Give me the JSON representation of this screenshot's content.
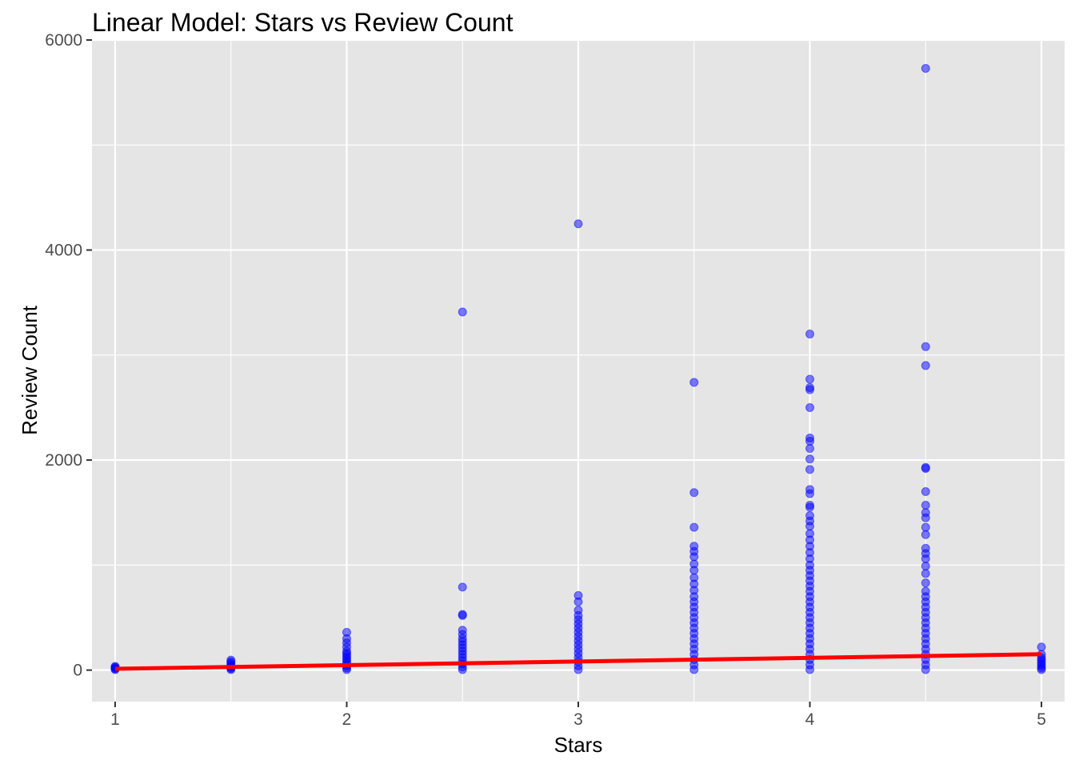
{
  "chart_data": {
    "type": "scatter",
    "title": "Linear Model: Stars vs Review Count",
    "xlabel": "Stars",
    "ylabel": "Review Count",
    "xlim": [
      0.9,
      5.1
    ],
    "ylim": [
      -300,
      6000
    ],
    "x_ticks": [
      1,
      2,
      3,
      4,
      5
    ],
    "x_tick_labels": [
      "1",
      "2",
      "3",
      "4",
      "5"
    ],
    "y_ticks": [
      0,
      2000,
      4000,
      6000
    ],
    "y_tick_labels": [
      "0",
      "2000",
      "4000",
      "6000"
    ],
    "grid": true,
    "legend": "none",
    "colors": {
      "panel": "#e5e5e5",
      "grid": "#ffffff",
      "points": "#0000ff",
      "fit_line": "#ff0000"
    },
    "series": [
      {
        "type": "scatter",
        "points": [
          {
            "x": 1,
            "y": 5
          },
          {
            "x": 1,
            "y": 12
          },
          {
            "x": 1,
            "y": 20
          },
          {
            "x": 1,
            "y": 28
          },
          {
            "x": 1,
            "y": 35
          },
          {
            "x": 1.5,
            "y": 5
          },
          {
            "x": 1.5,
            "y": 15
          },
          {
            "x": 1.5,
            "y": 25
          },
          {
            "x": 1.5,
            "y": 35
          },
          {
            "x": 1.5,
            "y": 50
          },
          {
            "x": 1.5,
            "y": 65
          },
          {
            "x": 1.5,
            "y": 80
          },
          {
            "x": 1.5,
            "y": 95
          },
          {
            "x": 2,
            "y": 5
          },
          {
            "x": 2,
            "y": 20
          },
          {
            "x": 2,
            "y": 40
          },
          {
            "x": 2,
            "y": 60
          },
          {
            "x": 2,
            "y": 80
          },
          {
            "x": 2,
            "y": 100
          },
          {
            "x": 2,
            "y": 120
          },
          {
            "x": 2,
            "y": 140
          },
          {
            "x": 2,
            "y": 160
          },
          {
            "x": 2,
            "y": 180
          },
          {
            "x": 2,
            "y": 220
          },
          {
            "x": 2,
            "y": 260
          },
          {
            "x": 2,
            "y": 300
          },
          {
            "x": 2,
            "y": 360
          },
          {
            "x": 2.5,
            "y": 5
          },
          {
            "x": 2.5,
            "y": 30
          },
          {
            "x": 2.5,
            "y": 60
          },
          {
            "x": 2.5,
            "y": 90
          },
          {
            "x": 2.5,
            "y": 120
          },
          {
            "x": 2.5,
            "y": 150
          },
          {
            "x": 2.5,
            "y": 180
          },
          {
            "x": 2.5,
            "y": 210
          },
          {
            "x": 2.5,
            "y": 240
          },
          {
            "x": 2.5,
            "y": 270
          },
          {
            "x": 2.5,
            "y": 300
          },
          {
            "x": 2.5,
            "y": 340
          },
          {
            "x": 2.5,
            "y": 380
          },
          {
            "x": 2.5,
            "y": 520
          },
          {
            "x": 2.5,
            "y": 530
          },
          {
            "x": 2.5,
            "y": 790
          },
          {
            "x": 2.5,
            "y": 3410
          },
          {
            "x": 3,
            "y": 5
          },
          {
            "x": 3,
            "y": 40
          },
          {
            "x": 3,
            "y": 80
          },
          {
            "x": 3,
            "y": 120
          },
          {
            "x": 3,
            "y": 160
          },
          {
            "x": 3,
            "y": 200
          },
          {
            "x": 3,
            "y": 240
          },
          {
            "x": 3,
            "y": 280
          },
          {
            "x": 3,
            "y": 320
          },
          {
            "x": 3,
            "y": 360
          },
          {
            "x": 3,
            "y": 400
          },
          {
            "x": 3,
            "y": 440
          },
          {
            "x": 3,
            "y": 480
          },
          {
            "x": 3,
            "y": 520
          },
          {
            "x": 3,
            "y": 570
          },
          {
            "x": 3,
            "y": 650
          },
          {
            "x": 3,
            "y": 710
          },
          {
            "x": 3,
            "y": 4250
          },
          {
            "x": 3.5,
            "y": 5
          },
          {
            "x": 3.5,
            "y": 50
          },
          {
            "x": 3.5,
            "y": 100
          },
          {
            "x": 3.5,
            "y": 150
          },
          {
            "x": 3.5,
            "y": 200
          },
          {
            "x": 3.5,
            "y": 250
          },
          {
            "x": 3.5,
            "y": 300
          },
          {
            "x": 3.5,
            "y": 350
          },
          {
            "x": 3.5,
            "y": 400
          },
          {
            "x": 3.5,
            "y": 450
          },
          {
            "x": 3.5,
            "y": 500
          },
          {
            "x": 3.5,
            "y": 550
          },
          {
            "x": 3.5,
            "y": 600
          },
          {
            "x": 3.5,
            "y": 650
          },
          {
            "x": 3.5,
            "y": 700
          },
          {
            "x": 3.5,
            "y": 760
          },
          {
            "x": 3.5,
            "y": 820
          },
          {
            "x": 3.5,
            "y": 880
          },
          {
            "x": 3.5,
            "y": 950
          },
          {
            "x": 3.5,
            "y": 1010
          },
          {
            "x": 3.5,
            "y": 1080
          },
          {
            "x": 3.5,
            "y": 1130
          },
          {
            "x": 3.5,
            "y": 1180
          },
          {
            "x": 3.5,
            "y": 1360
          },
          {
            "x": 3.5,
            "y": 1690
          },
          {
            "x": 3.5,
            "y": 2740
          },
          {
            "x": 4,
            "y": 5
          },
          {
            "x": 4,
            "y": 50
          },
          {
            "x": 4,
            "y": 100
          },
          {
            "x": 4,
            "y": 150
          },
          {
            "x": 4,
            "y": 200
          },
          {
            "x": 4,
            "y": 250
          },
          {
            "x": 4,
            "y": 300
          },
          {
            "x": 4,
            "y": 350
          },
          {
            "x": 4,
            "y": 400
          },
          {
            "x": 4,
            "y": 450
          },
          {
            "x": 4,
            "y": 500
          },
          {
            "x": 4,
            "y": 550
          },
          {
            "x": 4,
            "y": 600
          },
          {
            "x": 4,
            "y": 650
          },
          {
            "x": 4,
            "y": 700
          },
          {
            "x": 4,
            "y": 750
          },
          {
            "x": 4,
            "y": 800
          },
          {
            "x": 4,
            "y": 850
          },
          {
            "x": 4,
            "y": 900
          },
          {
            "x": 4,
            "y": 950
          },
          {
            "x": 4,
            "y": 1000
          },
          {
            "x": 4,
            "y": 1060
          },
          {
            "x": 4,
            "y": 1120
          },
          {
            "x": 4,
            "y": 1180
          },
          {
            "x": 4,
            "y": 1240
          },
          {
            "x": 4,
            "y": 1300
          },
          {
            "x": 4,
            "y": 1370
          },
          {
            "x": 4,
            "y": 1420
          },
          {
            "x": 4,
            "y": 1470
          },
          {
            "x": 4,
            "y": 1550
          },
          {
            "x": 4,
            "y": 1570
          },
          {
            "x": 4,
            "y": 1680
          },
          {
            "x": 4,
            "y": 1720
          },
          {
            "x": 4,
            "y": 1910
          },
          {
            "x": 4,
            "y": 2010
          },
          {
            "x": 4,
            "y": 2110
          },
          {
            "x": 4,
            "y": 2180
          },
          {
            "x": 4,
            "y": 2210
          },
          {
            "x": 4,
            "y": 2500
          },
          {
            "x": 4,
            "y": 2670
          },
          {
            "x": 4,
            "y": 2690
          },
          {
            "x": 4,
            "y": 2770
          },
          {
            "x": 4,
            "y": 3200
          },
          {
            "x": 4.5,
            "y": 5
          },
          {
            "x": 4.5,
            "y": 50
          },
          {
            "x": 4.5,
            "y": 100
          },
          {
            "x": 4.5,
            "y": 150
          },
          {
            "x": 4.5,
            "y": 200
          },
          {
            "x": 4.5,
            "y": 250
          },
          {
            "x": 4.5,
            "y": 300
          },
          {
            "x": 4.5,
            "y": 350
          },
          {
            "x": 4.5,
            "y": 400
          },
          {
            "x": 4.5,
            "y": 450
          },
          {
            "x": 4.5,
            "y": 500
          },
          {
            "x": 4.5,
            "y": 550
          },
          {
            "x": 4.5,
            "y": 600
          },
          {
            "x": 4.5,
            "y": 650
          },
          {
            "x": 4.5,
            "y": 700
          },
          {
            "x": 4.5,
            "y": 750
          },
          {
            "x": 4.5,
            "y": 830
          },
          {
            "x": 4.5,
            "y": 920
          },
          {
            "x": 4.5,
            "y": 990
          },
          {
            "x": 4.5,
            "y": 1060
          },
          {
            "x": 4.5,
            "y": 1110
          },
          {
            "x": 4.5,
            "y": 1160
          },
          {
            "x": 4.5,
            "y": 1290
          },
          {
            "x": 4.5,
            "y": 1360
          },
          {
            "x": 4.5,
            "y": 1450
          },
          {
            "x": 4.5,
            "y": 1500
          },
          {
            "x": 4.5,
            "y": 1570
          },
          {
            "x": 4.5,
            "y": 1700
          },
          {
            "x": 4.5,
            "y": 1920
          },
          {
            "x": 4.5,
            "y": 1930
          },
          {
            "x": 4.5,
            "y": 2900
          },
          {
            "x": 4.5,
            "y": 3080
          },
          {
            "x": 4.5,
            "y": 5730
          },
          {
            "x": 5,
            "y": 5
          },
          {
            "x": 5,
            "y": 20
          },
          {
            "x": 5,
            "y": 40
          },
          {
            "x": 5,
            "y": 60
          },
          {
            "x": 5,
            "y": 80
          },
          {
            "x": 5,
            "y": 100
          },
          {
            "x": 5,
            "y": 120
          },
          {
            "x": 5,
            "y": 150
          },
          {
            "x": 5,
            "y": 220
          }
        ]
      },
      {
        "type": "line",
        "points": [
          {
            "x": 1,
            "y": 12
          },
          {
            "x": 5,
            "y": 152
          }
        ]
      }
    ]
  }
}
